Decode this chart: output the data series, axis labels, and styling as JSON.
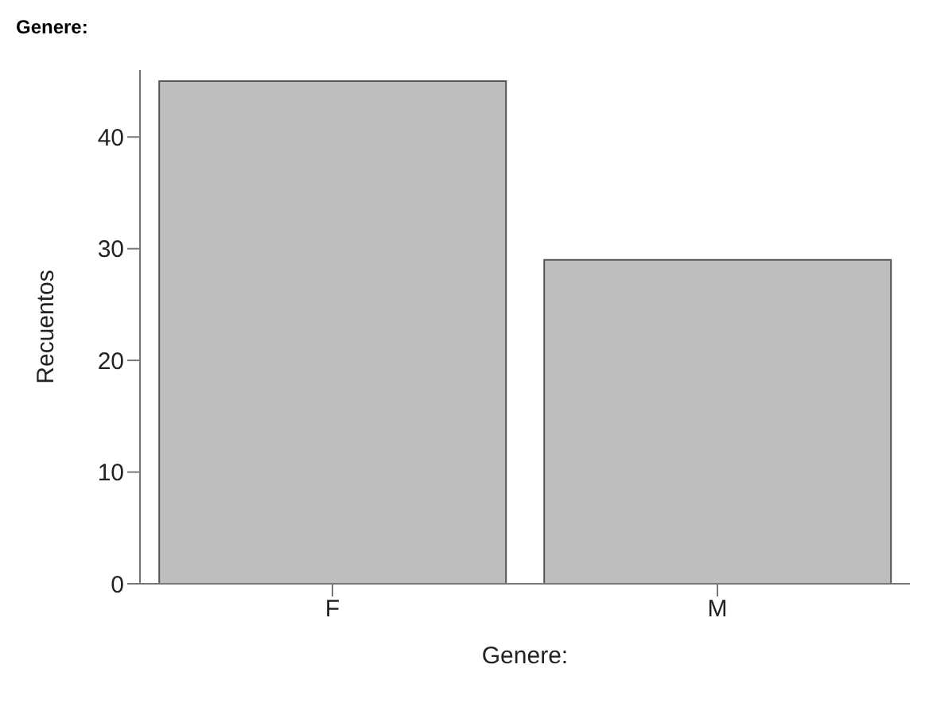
{
  "chart_data": {
    "type": "bar",
    "title": "Genere:",
    "xlabel": "Genere:",
    "ylabel": "Recuentos",
    "categories": [
      "F",
      "M"
    ],
    "values": [
      45,
      29
    ],
    "color": "#bebebe",
    "ylim": [
      0,
      46
    ],
    "yticks": [
      0,
      10,
      20,
      30,
      40
    ],
    "grid": false,
    "legend": false
  }
}
